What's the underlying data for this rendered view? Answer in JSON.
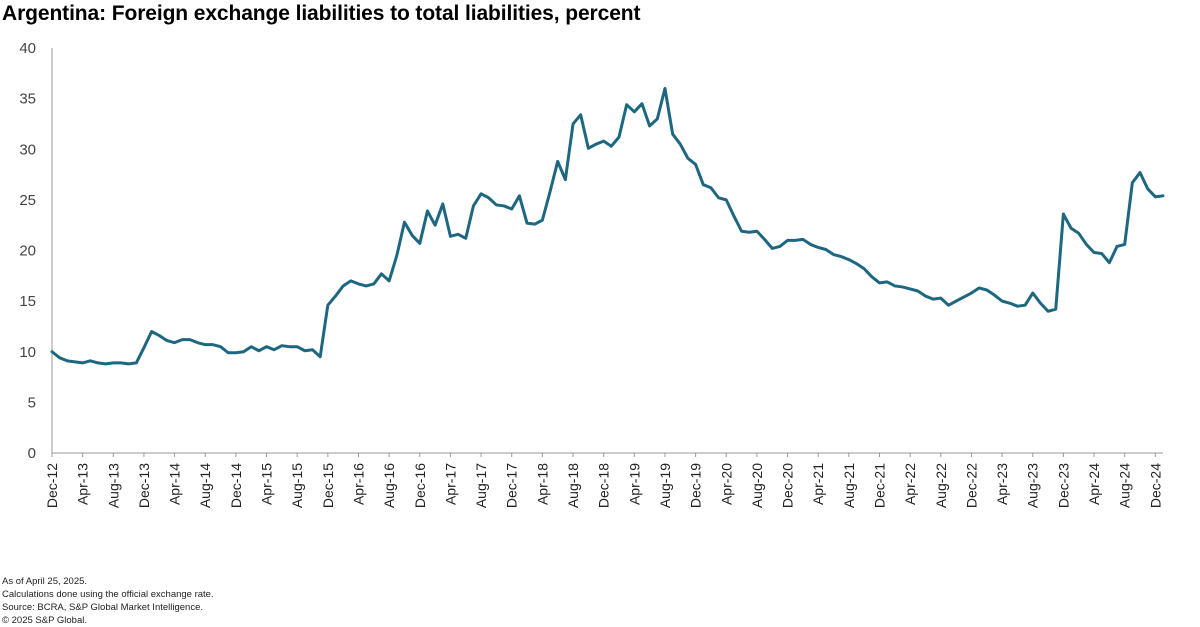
{
  "footnotes": [
    "As of April 25, 2025.",
    "Calculations done using the official exchange rate.",
    "Source: BCRA, S&P Global Market Intelligence.",
    "© 2025 S&P Global."
  ],
  "chart_data": {
    "type": "line",
    "title": "Argentina: Foreign exchange liabilities to total liabilities, percent",
    "xlabel": "",
    "ylabel": "",
    "ylim": [
      0,
      40
    ],
    "yticks": [
      0,
      5,
      10,
      15,
      20,
      25,
      30,
      35,
      40
    ],
    "grid": false,
    "line_color": "#1d6781",
    "x_tick_labels": [
      "Dec-12",
      "Apr-13",
      "Aug-13",
      "Dec-13",
      "Apr-14",
      "Aug-14",
      "Dec-14",
      "Apr-15",
      "Aug-15",
      "Dec-15",
      "Apr-16",
      "Aug-16",
      "Dec-16",
      "Apr-17",
      "Aug-17",
      "Dec-17",
      "Apr-18",
      "Aug-18",
      "Dec-18",
      "Apr-19",
      "Aug-19",
      "Dec-19",
      "Apr-20",
      "Aug-20",
      "Dec-20",
      "Apr-21",
      "Aug-21",
      "Dec-21",
      "Apr-22",
      "Aug-22",
      "Dec-22",
      "Apr-23",
      "Aug-23",
      "Dec-23",
      "Apr-24",
      "Aug-24",
      "Dec-24"
    ],
    "series": [
      {
        "name": "Foreign exchange liabilities to total liabilities",
        "start": "Dec-12",
        "frequency": "monthly",
        "values": [
          10.0,
          9.4,
          9.1,
          9.0,
          8.9,
          9.1,
          8.9,
          8.8,
          8.9,
          8.9,
          8.8,
          8.9,
          10.4,
          12.0,
          11.6,
          11.1,
          10.9,
          11.2,
          11.2,
          10.9,
          10.7,
          10.7,
          10.5,
          9.9,
          9.9,
          10.0,
          10.5,
          10.1,
          10.5,
          10.2,
          10.6,
          10.5,
          10.5,
          10.1,
          10.2,
          9.5,
          14.6,
          15.5,
          16.5,
          17.0,
          16.7,
          16.5,
          16.7,
          17.7,
          17.0,
          19.5,
          22.8,
          21.5,
          20.7,
          23.9,
          22.5,
          24.6,
          21.4,
          21.6,
          21.2,
          24.4,
          25.6,
          25.2,
          24.5,
          24.4,
          24.1,
          25.4,
          22.7,
          22.6,
          23.0,
          25.8,
          28.8,
          27.0,
          32.5,
          33.4,
          30.1,
          30.5,
          30.8,
          30.3,
          31.2,
          34.4,
          33.7,
          34.5,
          32.3,
          33.0,
          36.0,
          31.5,
          30.5,
          29.1,
          28.5,
          26.5,
          26.2,
          25.2,
          25.0,
          23.4,
          21.9,
          21.8,
          21.9,
          21.1,
          20.2,
          20.4,
          21.0,
          21.0,
          21.1,
          20.6,
          20.3,
          20.1,
          19.6,
          19.4,
          19.1,
          18.7,
          18.2,
          17.4,
          16.8,
          16.9,
          16.5,
          16.4,
          16.2,
          16.0,
          15.5,
          15.2,
          15.3,
          14.6,
          15.0,
          15.4,
          15.8,
          16.3,
          16.1,
          15.6,
          15.0,
          14.8,
          14.5,
          14.6,
          15.8,
          14.8,
          14.0,
          14.2,
          23.6,
          22.2,
          21.7,
          20.6,
          19.8,
          19.7,
          18.8,
          20.4,
          20.6,
          26.7,
          27.7,
          26.1,
          25.3,
          25.4
        ]
      }
    ]
  }
}
